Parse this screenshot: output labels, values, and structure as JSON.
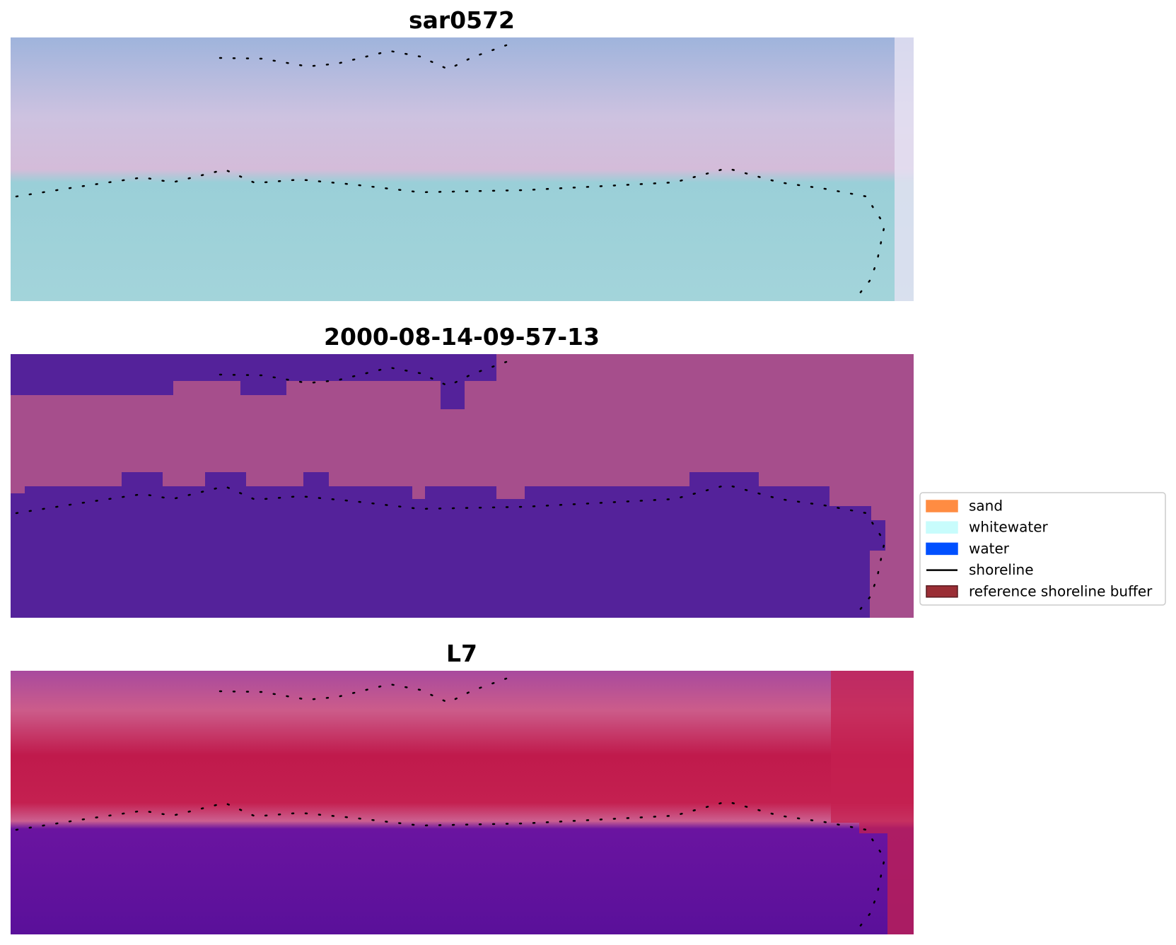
{
  "panels": [
    {
      "title": "sar0572"
    },
    {
      "title": "2000-08-14-09-57-13"
    },
    {
      "title": "L7"
    }
  ],
  "legend": [
    {
      "label": "sand",
      "color": "#ff8c42",
      "kind": "patch"
    },
    {
      "label": "whitewater",
      "color": "#c8fcfc",
      "kind": "patch"
    },
    {
      "label": "water",
      "color": "#0050ff",
      "kind": "patch"
    },
    {
      "label": "shoreline",
      "color": "#000000",
      "kind": "line"
    },
    {
      "label": "reference shoreline buffer",
      "color": "#9a2e35",
      "kind": "patch"
    }
  ]
}
